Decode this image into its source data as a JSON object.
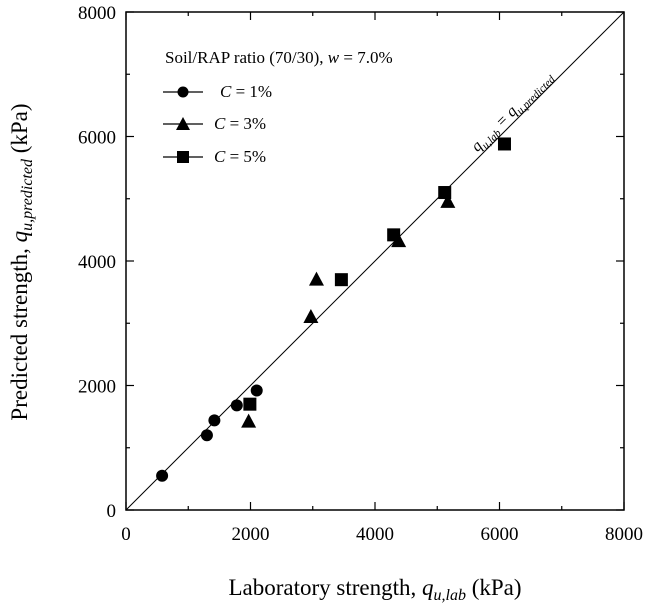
{
  "chart_data": {
    "type": "scatter",
    "xlabel": {
      "prefix": "Laboratory strength, ",
      "symbol": "q",
      "subscript": "u,lab",
      "suffix": " (kPa)"
    },
    "ylabel": {
      "prefix": "Predicted strength, ",
      "symbol": "q",
      "subscript": "u,predicted",
      "suffix": " (kPa)"
    },
    "xlim": [
      0,
      8000
    ],
    "ylim": [
      0,
      8000
    ],
    "xticks": [
      "0",
      "2000",
      "4000",
      "6000",
      "8000"
    ],
    "yticks": [
      "0",
      "2000",
      "4000",
      "6000",
      "8000"
    ],
    "grid": false,
    "legend_title": {
      "prefix": "Soil/RAP ratio (70/30), ",
      "symbol": "w",
      "suffix": " = 7.0%"
    },
    "legend_position": "top-left",
    "series": [
      {
        "name": "C = 1%",
        "name_symbol": "C",
        "name_suffix": " = 1%",
        "marker": "circle",
        "points": [
          [
            580,
            550
          ],
          [
            1300,
            1200
          ],
          [
            1420,
            1440
          ],
          [
            1780,
            1680
          ],
          [
            2100,
            1920
          ]
        ]
      },
      {
        "name": "C = 3%",
        "name_symbol": "C",
        "name_suffix": " = 3%",
        "marker": "triangle",
        "points": [
          [
            1970,
            1420
          ],
          [
            2970,
            3100
          ],
          [
            3060,
            3700
          ],
          [
            4380,
            4320
          ],
          [
            5170,
            4950
          ]
        ]
      },
      {
        "name": "C = 5%",
        "name_symbol": "C",
        "name_suffix": " = 5%",
        "marker": "square",
        "points": [
          [
            1990,
            1700
          ],
          [
            3460,
            3700
          ],
          [
            4300,
            4420
          ],
          [
            5120,
            5100
          ],
          [
            6080,
            5880
          ]
        ]
      }
    ],
    "reference_line": {
      "from": [
        0,
        0
      ],
      "to": [
        8000,
        8000
      ],
      "label": {
        "lhs_symbol": "q",
        "lhs_sub": "u,lab",
        "rhs_symbol": "q",
        "rhs_sub": "u,predicted"
      }
    }
  }
}
